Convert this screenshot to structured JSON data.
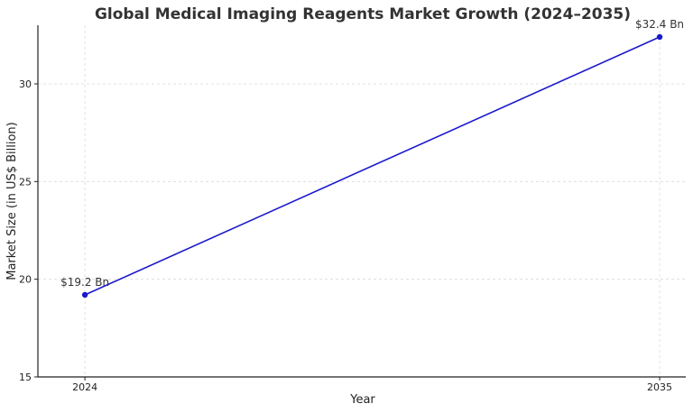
{
  "chart_data": {
    "type": "line",
    "title": "Global Medical Imaging Reagents Market Growth (2024–2035)",
    "xlabel": "Year",
    "ylabel": "Market Size (in US$ Billion)",
    "x": [
      2024,
      2035
    ],
    "x_tick_labels": [
      "2024",
      "2035"
    ],
    "xlim": [
      2023.1,
      2035.5
    ],
    "ylim": [
      15,
      33
    ],
    "y_ticks": [
      15,
      20,
      25,
      30
    ],
    "y_tick_labels": [
      "15",
      "20",
      "25",
      "30"
    ],
    "grid": true,
    "series": [
      {
        "values": [
          19.2,
          32.4
        ],
        "color": "#1a1acc",
        "data_labels": [
          "$19.2 Bn",
          "$32.4 Bn"
        ]
      }
    ]
  }
}
